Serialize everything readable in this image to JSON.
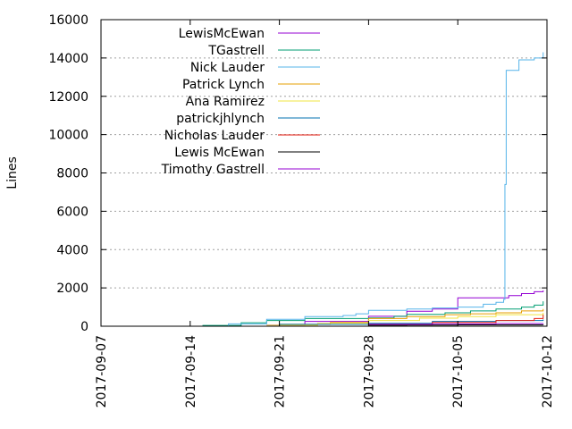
{
  "chart_data": {
    "type": "line",
    "title": "",
    "xlabel": "",
    "ylabel": "Lines",
    "x_type": "date",
    "xlim": [
      "2017-09-07",
      "2017-10-12"
    ],
    "ylim": [
      0,
      16000
    ],
    "x_ticks": [
      "2017-09-07",
      "2017-09-14",
      "2017-09-21",
      "2017-09-28",
      "2017-10-05",
      "2017-10-12"
    ],
    "y_ticks": [
      0,
      2000,
      4000,
      6000,
      8000,
      10000,
      12000,
      14000,
      16000
    ],
    "grid": "horizontal dotted",
    "legend_position": "top-left",
    "line_style": "step",
    "series": [
      {
        "name": "LewisMcEwan",
        "color": "#9400d3",
        "points": [
          [
            "2017-09-20",
            60
          ],
          [
            "2017-09-23",
            250
          ],
          [
            "2017-09-28",
            520
          ],
          [
            "2017-09-30",
            520
          ],
          [
            "2017-10-01",
            780
          ],
          [
            "2017-10-03",
            900
          ],
          [
            "2017-10-04",
            900
          ],
          [
            "2017-10-05",
            1480
          ],
          [
            "2017-10-08",
            1480
          ],
          [
            "2017-10-09",
            1600
          ],
          [
            "2017-10-10",
            1700
          ],
          [
            "2017-10-11",
            1800
          ],
          [
            "2017-10-11.7",
            1870
          ]
        ]
      },
      {
        "name": "TGastrell",
        "color": "#009e73",
        "points": [
          [
            "2017-09-13",
            0
          ],
          [
            "2017-09-15",
            40
          ],
          [
            "2017-09-18",
            180
          ],
          [
            "2017-09-20",
            300
          ],
          [
            "2017-09-23",
            400
          ],
          [
            "2017-09-28",
            430
          ],
          [
            "2017-09-30",
            520
          ],
          [
            "2017-10-01",
            620
          ],
          [
            "2017-10-04",
            700
          ],
          [
            "2017-10-06",
            800
          ],
          [
            "2017-10-08",
            900
          ],
          [
            "2017-10-10",
            1000
          ],
          [
            "2017-10-11",
            1100
          ],
          [
            "2017-10-11.7",
            1300
          ]
        ]
      },
      {
        "name": "Nick Lauder",
        "color": "#56b4e9",
        "points": [
          [
            "2017-09-13",
            0
          ],
          [
            "2017-09-17",
            120
          ],
          [
            "2017-09-20",
            360
          ],
          [
            "2017-09-23",
            500
          ],
          [
            "2017-09-26",
            560
          ],
          [
            "2017-09-27",
            650
          ],
          [
            "2017-09-28",
            830
          ],
          [
            "2017-10-01",
            900
          ],
          [
            "2017-10-03",
            950
          ],
          [
            "2017-10-05",
            1000
          ],
          [
            "2017-10-07",
            1150
          ],
          [
            "2017-10-08",
            1250
          ],
          [
            "2017-10-08.6",
            1400
          ],
          [
            "2017-10-08.7",
            7400
          ],
          [
            "2017-10-08.8",
            13350
          ],
          [
            "2017-10-09.5",
            13350
          ],
          [
            "2017-10-09.8",
            13900
          ],
          [
            "2017-10-11",
            14000
          ],
          [
            "2017-10-11.7",
            14300
          ]
        ]
      },
      {
        "name": "Patrick Lynch",
        "color": "#e69f00",
        "points": [
          [
            "2017-09-19",
            0
          ],
          [
            "2017-09-21",
            100
          ],
          [
            "2017-09-25",
            200
          ],
          [
            "2017-09-28",
            400
          ],
          [
            "2017-10-01",
            500
          ],
          [
            "2017-10-04",
            600
          ],
          [
            "2017-10-06",
            650
          ],
          [
            "2017-10-08",
            700
          ],
          [
            "2017-10-10",
            800
          ],
          [
            "2017-10-11.7",
            900
          ]
        ]
      },
      {
        "name": "Ana Ramirez",
        "color": "#f0e442",
        "points": [
          [
            "2017-09-20",
            50
          ],
          [
            "2017-09-24",
            150
          ],
          [
            "2017-09-28",
            300
          ],
          [
            "2017-10-02",
            420
          ],
          [
            "2017-10-05",
            500
          ],
          [
            "2017-10-08",
            600
          ],
          [
            "2017-10-11.7",
            700
          ]
        ]
      },
      {
        "name": "patrickjhlynch",
        "color": "#0072b2",
        "points": [
          [
            "2017-09-19",
            0
          ],
          [
            "2017-09-21",
            100
          ],
          [
            "2017-09-28",
            150
          ],
          [
            "2017-10-03",
            250
          ],
          [
            "2017-10-08",
            300
          ],
          [
            "2017-10-11.7",
            350
          ]
        ]
      },
      {
        "name": "Nicholas Lauder",
        "color": "#e51e10",
        "points": [
          [
            "2017-09-20",
            0
          ],
          [
            "2017-09-28",
            100
          ],
          [
            "2017-10-03",
            200
          ],
          [
            "2017-10-08",
            300
          ],
          [
            "2017-10-11",
            400
          ],
          [
            "2017-10-11.7",
            600
          ]
        ]
      },
      {
        "name": "Lewis McEwan",
        "color": "#000000",
        "points": [
          [
            "2017-09-28",
            50
          ],
          [
            "2017-10-01",
            60
          ],
          [
            "2017-10-05",
            70
          ],
          [
            "2017-10-11.7",
            80
          ]
        ]
      },
      {
        "name": "Timothy Gastrell",
        "color": "#9400d3",
        "points": [
          [
            "2017-09-28",
            100
          ],
          [
            "2017-10-03",
            120
          ],
          [
            "2017-10-08",
            140
          ],
          [
            "2017-10-11.7",
            150
          ]
        ]
      }
    ]
  }
}
